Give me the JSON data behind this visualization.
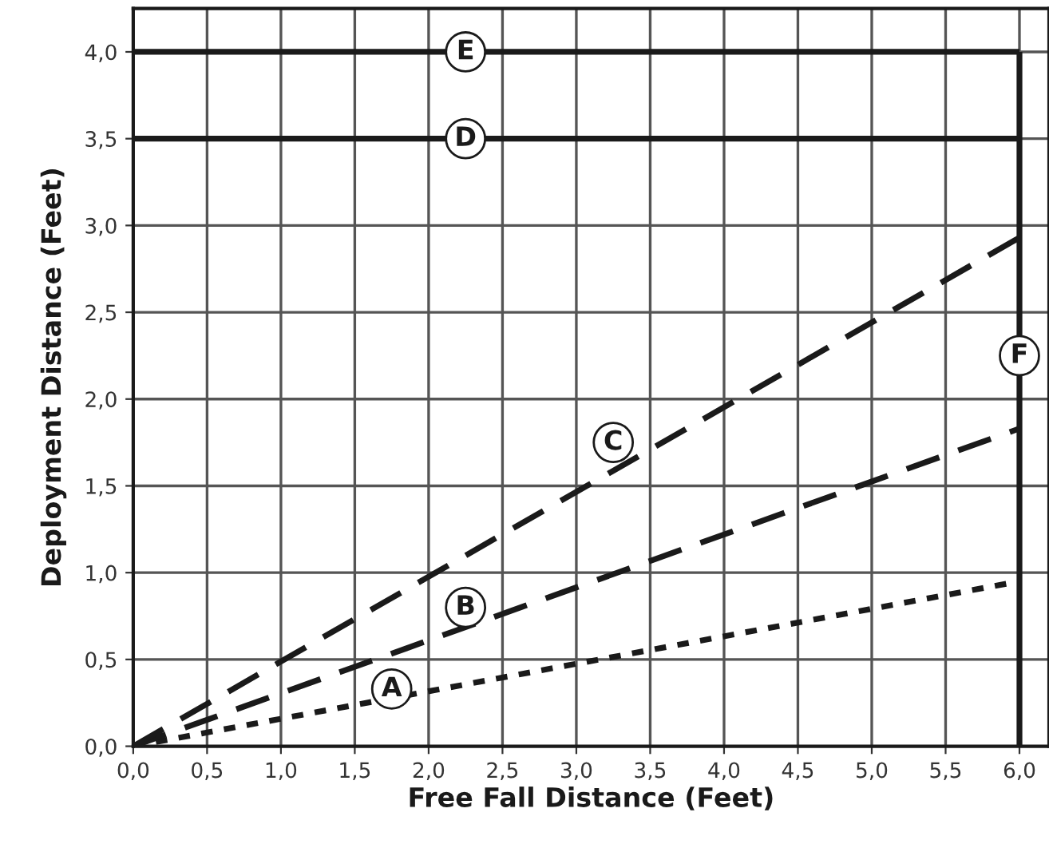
{
  "chart_data": {
    "type": "line",
    "xlabel": "Free Fall Distance (Feet)",
    "ylabel": "Deployment Distance (Feet)",
    "xlim": [
      0,
      6.2
    ],
    "ylim": [
      0,
      4.25
    ],
    "xticks": [
      {
        "value": 0,
        "label": "0,0"
      },
      {
        "value": 0.5,
        "label": "0,5"
      },
      {
        "value": 1,
        "label": "1,0"
      },
      {
        "value": 1.5,
        "label": "1,5"
      },
      {
        "value": 2,
        "label": "2,0"
      },
      {
        "value": 2.5,
        "label": "2,5"
      },
      {
        "value": 3,
        "label": "3,0"
      },
      {
        "value": 3.5,
        "label": "3,5"
      },
      {
        "value": 4,
        "label": "4,0"
      },
      {
        "value": 4.5,
        "label": "4,5"
      },
      {
        "value": 5,
        "label": "5,0"
      },
      {
        "value": 5.5,
        "label": "5,5"
      },
      {
        "value": 6,
        "label": "6,0"
      }
    ],
    "yticks": [
      {
        "value": 0,
        "label": "0,0"
      },
      {
        "value": 0.5,
        "label": "0,5"
      },
      {
        "value": 1,
        "label": "1,0"
      },
      {
        "value": 1.5,
        "label": "1,5"
      },
      {
        "value": 2,
        "label": "2,0"
      },
      {
        "value": 2.5,
        "label": "2,5"
      },
      {
        "value": 3,
        "label": "3,0"
      },
      {
        "value": 3.5,
        "label": "3,5"
      },
      {
        "value": 4,
        "label": "4,0"
      }
    ],
    "grid": true,
    "marker": "none",
    "x": [
      0,
      6
    ],
    "series": [
      {
        "color": "#1a1a1a",
        "values": [
          0,
          0.95
        ],
        "line_style": "dotted"
      },
      {
        "color": "#1a1a1a",
        "values": [
          0,
          1.83
        ],
        "line_style": "dashed"
      },
      {
        "color": "#1a1a1a",
        "values": [
          0,
          2.93
        ],
        "line_style": "dashed"
      },
      {
        "color": "#1a1a1a",
        "values": [
          3.5,
          3.5
        ],
        "line_style": "solid"
      },
      {
        "color": "#1a1a1a",
        "values": [
          4,
          4
        ],
        "line_style": "solid"
      },
      {
        "color": "#1a1a1a",
        "x": [
          6,
          6
        ],
        "values": [
          0,
          4
        ],
        "line_style": "solid"
      }
    ],
    "annotations": [
      {
        "text": "A",
        "x": 1.75,
        "y": 0.33
      },
      {
        "text": "B",
        "x": 2.25,
        "y": 0.8
      },
      {
        "text": "C",
        "x": 3.25,
        "y": 1.75
      },
      {
        "text": "D",
        "x": 2.25,
        "y": 3.5
      },
      {
        "text": "E",
        "x": 2.25,
        "y": 4.0
      },
      {
        "text": "F",
        "x": 6.0,
        "y": 2.25
      }
    ]
  }
}
